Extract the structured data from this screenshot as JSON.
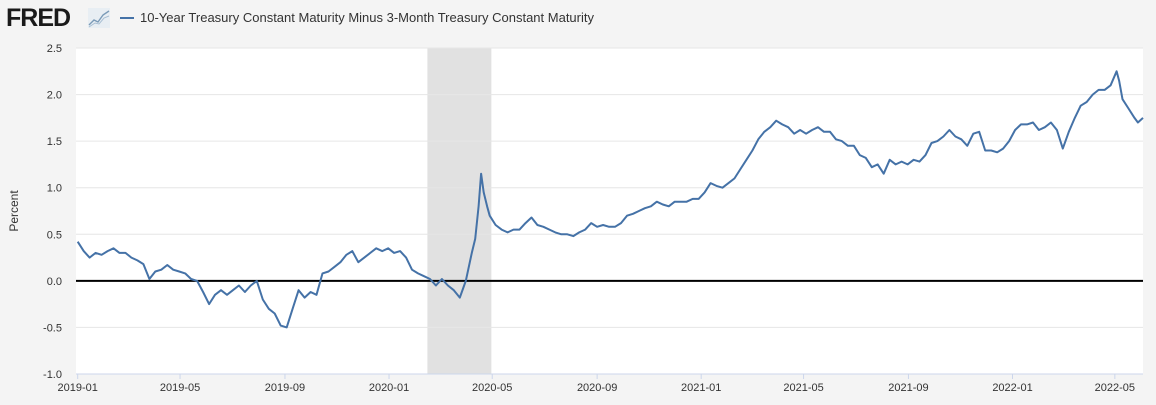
{
  "header": {
    "logo": "FRED",
    "series_label": "10-Year Treasury Constant Maturity Minus 3-Month Treasury Constant Maturity"
  },
  "chart_data": {
    "type": "line",
    "title": "10-Year Treasury Constant Maturity Minus 3-Month Treasury Constant Maturity",
    "ylabel": "Percent",
    "xlabel": "",
    "ylim": [
      -1.0,
      2.5
    ],
    "xlim": [
      "2018-12-30",
      "2022-06-03"
    ],
    "yticks": [
      -1.0,
      -0.5,
      0.0,
      0.5,
      1.0,
      1.5,
      2.0,
      2.5
    ],
    "ytick_labels": [
      "-1.0",
      "-0.5",
      "0.0",
      "0.5",
      "1.0",
      "1.5",
      "2.0",
      "2.5"
    ],
    "xticks": [
      "2019-01-01",
      "2019-05-01",
      "2019-09-01",
      "2020-01-01",
      "2020-05-01",
      "2020-09-01",
      "2021-01-01",
      "2021-05-01",
      "2021-09-01",
      "2022-01-01",
      "2022-05-01"
    ],
    "xtick_labels": [
      "2019-01",
      "2019-05",
      "2019-09",
      "2020-01",
      "2020-05",
      "2020-09",
      "2021-01",
      "2021-05",
      "2021-09",
      "2022-01",
      "2022-05"
    ],
    "grid": true,
    "recession": {
      "start": "2020-02-15",
      "end": "2020-04-30"
    },
    "colors": {
      "line": "#4572a7",
      "zero_line": "#000000",
      "recession": "#e1e1e1",
      "grid": "#e6e6e6"
    },
    "series": [
      {
        "name": "10-Year Treasury Constant Maturity Minus 3-Month Treasury Constant Maturity",
        "points": [
          [
            "2019-01-01",
            0.42
          ],
          [
            "2019-01-08",
            0.32
          ],
          [
            "2019-01-15",
            0.25
          ],
          [
            "2019-01-22",
            0.3
          ],
          [
            "2019-01-29",
            0.28
          ],
          [
            "2019-02-05",
            0.32
          ],
          [
            "2019-02-12",
            0.35
          ],
          [
            "2019-02-19",
            0.3
          ],
          [
            "2019-02-26",
            0.3
          ],
          [
            "2019-03-05",
            0.25
          ],
          [
            "2019-03-12",
            0.22
          ],
          [
            "2019-03-19",
            0.18
          ],
          [
            "2019-03-26",
            0.02
          ],
          [
            "2019-04-02",
            0.1
          ],
          [
            "2019-04-09",
            0.12
          ],
          [
            "2019-04-16",
            0.17
          ],
          [
            "2019-04-23",
            0.12
          ],
          [
            "2019-04-30",
            0.1
          ],
          [
            "2019-05-07",
            0.08
          ],
          [
            "2019-05-14",
            0.02
          ],
          [
            "2019-05-21",
            0.0
          ],
          [
            "2019-05-28",
            -0.12
          ],
          [
            "2019-06-04",
            -0.25
          ],
          [
            "2019-06-11",
            -0.15
          ],
          [
            "2019-06-18",
            -0.1
          ],
          [
            "2019-06-25",
            -0.15
          ],
          [
            "2019-07-02",
            -0.1
          ],
          [
            "2019-07-09",
            -0.05
          ],
          [
            "2019-07-16",
            -0.12
          ],
          [
            "2019-07-23",
            -0.05
          ],
          [
            "2019-07-30",
            0.0
          ],
          [
            "2019-08-06",
            -0.2
          ],
          [
            "2019-08-13",
            -0.3
          ],
          [
            "2019-08-20",
            -0.35
          ],
          [
            "2019-08-27",
            -0.48
          ],
          [
            "2019-09-03",
            -0.5
          ],
          [
            "2019-09-10",
            -0.3
          ],
          [
            "2019-09-17",
            -0.1
          ],
          [
            "2019-09-24",
            -0.18
          ],
          [
            "2019-10-01",
            -0.12
          ],
          [
            "2019-10-08",
            -0.15
          ],
          [
            "2019-10-15",
            0.08
          ],
          [
            "2019-10-22",
            0.1
          ],
          [
            "2019-10-29",
            0.15
          ],
          [
            "2019-11-05",
            0.2
          ],
          [
            "2019-11-12",
            0.28
          ],
          [
            "2019-11-19",
            0.32
          ],
          [
            "2019-11-26",
            0.2
          ],
          [
            "2019-12-03",
            0.25
          ],
          [
            "2019-12-10",
            0.3
          ],
          [
            "2019-12-17",
            0.35
          ],
          [
            "2019-12-24",
            0.32
          ],
          [
            "2019-12-31",
            0.35
          ],
          [
            "2020-01-07",
            0.3
          ],
          [
            "2020-01-14",
            0.32
          ],
          [
            "2020-01-21",
            0.25
          ],
          [
            "2020-01-28",
            0.12
          ],
          [
            "2020-02-04",
            0.08
          ],
          [
            "2020-02-11",
            0.05
          ],
          [
            "2020-02-18",
            0.02
          ],
          [
            "2020-02-25",
            -0.05
          ],
          [
            "2020-03-03",
            0.02
          ],
          [
            "2020-03-10",
            -0.05
          ],
          [
            "2020-03-17",
            -0.1
          ],
          [
            "2020-03-24",
            -0.18
          ],
          [
            "2020-03-31",
            0.0
          ],
          [
            "2020-04-07",
            0.3
          ],
          [
            "2020-04-11",
            0.45
          ],
          [
            "2020-04-15",
            0.8
          ],
          [
            "2020-04-18",
            1.15
          ],
          [
            "2020-04-21",
            0.95
          ],
          [
            "2020-04-25",
            0.8
          ],
          [
            "2020-04-28",
            0.7
          ],
          [
            "2020-05-05",
            0.6
          ],
          [
            "2020-05-12",
            0.55
          ],
          [
            "2020-05-19",
            0.52
          ],
          [
            "2020-05-26",
            0.55
          ],
          [
            "2020-06-02",
            0.55
          ],
          [
            "2020-06-09",
            0.62
          ],
          [
            "2020-06-16",
            0.68
          ],
          [
            "2020-06-23",
            0.6
          ],
          [
            "2020-06-30",
            0.58
          ],
          [
            "2020-07-07",
            0.55
          ],
          [
            "2020-07-14",
            0.52
          ],
          [
            "2020-07-21",
            0.5
          ],
          [
            "2020-07-28",
            0.5
          ],
          [
            "2020-08-04",
            0.48
          ],
          [
            "2020-08-11",
            0.52
          ],
          [
            "2020-08-18",
            0.55
          ],
          [
            "2020-08-25",
            0.62
          ],
          [
            "2020-09-01",
            0.58
          ],
          [
            "2020-09-08",
            0.6
          ],
          [
            "2020-09-15",
            0.58
          ],
          [
            "2020-09-22",
            0.58
          ],
          [
            "2020-09-29",
            0.62
          ],
          [
            "2020-10-06",
            0.7
          ],
          [
            "2020-10-13",
            0.72
          ],
          [
            "2020-10-20",
            0.75
          ],
          [
            "2020-10-27",
            0.78
          ],
          [
            "2020-11-03",
            0.8
          ],
          [
            "2020-11-10",
            0.85
          ],
          [
            "2020-11-17",
            0.82
          ],
          [
            "2020-11-24",
            0.8
          ],
          [
            "2020-12-01",
            0.85
          ],
          [
            "2020-12-08",
            0.85
          ],
          [
            "2020-12-15",
            0.85
          ],
          [
            "2020-12-22",
            0.88
          ],
          [
            "2020-12-29",
            0.88
          ],
          [
            "2021-01-05",
            0.95
          ],
          [
            "2021-01-12",
            1.05
          ],
          [
            "2021-01-19",
            1.02
          ],
          [
            "2021-01-26",
            1.0
          ],
          [
            "2021-02-02",
            1.05
          ],
          [
            "2021-02-09",
            1.1
          ],
          [
            "2021-02-16",
            1.2
          ],
          [
            "2021-02-23",
            1.3
          ],
          [
            "2021-03-02",
            1.4
          ],
          [
            "2021-03-09",
            1.52
          ],
          [
            "2021-03-16",
            1.6
          ],
          [
            "2021-03-23",
            1.65
          ],
          [
            "2021-03-30",
            1.72
          ],
          [
            "2021-04-06",
            1.68
          ],
          [
            "2021-04-13",
            1.65
          ],
          [
            "2021-04-20",
            1.58
          ],
          [
            "2021-04-27",
            1.62
          ],
          [
            "2021-05-04",
            1.58
          ],
          [
            "2021-05-11",
            1.62
          ],
          [
            "2021-05-18",
            1.65
          ],
          [
            "2021-05-25",
            1.6
          ],
          [
            "2021-06-01",
            1.6
          ],
          [
            "2021-06-08",
            1.52
          ],
          [
            "2021-06-15",
            1.5
          ],
          [
            "2021-06-22",
            1.45
          ],
          [
            "2021-06-29",
            1.45
          ],
          [
            "2021-07-06",
            1.35
          ],
          [
            "2021-07-13",
            1.32
          ],
          [
            "2021-07-20",
            1.22
          ],
          [
            "2021-07-27",
            1.25
          ],
          [
            "2021-08-03",
            1.15
          ],
          [
            "2021-08-10",
            1.3
          ],
          [
            "2021-08-17",
            1.25
          ],
          [
            "2021-08-24",
            1.28
          ],
          [
            "2021-08-31",
            1.25
          ],
          [
            "2021-09-07",
            1.3
          ],
          [
            "2021-09-14",
            1.28
          ],
          [
            "2021-09-21",
            1.35
          ],
          [
            "2021-09-28",
            1.48
          ],
          [
            "2021-10-05",
            1.5
          ],
          [
            "2021-10-12",
            1.55
          ],
          [
            "2021-10-19",
            1.62
          ],
          [
            "2021-10-26",
            1.55
          ],
          [
            "2021-11-02",
            1.52
          ],
          [
            "2021-11-09",
            1.45
          ],
          [
            "2021-11-16",
            1.58
          ],
          [
            "2021-11-23",
            1.6
          ],
          [
            "2021-11-30",
            1.4
          ],
          [
            "2021-12-07",
            1.4
          ],
          [
            "2021-12-14",
            1.38
          ],
          [
            "2021-12-21",
            1.42
          ],
          [
            "2021-12-28",
            1.5
          ],
          [
            "2022-01-04",
            1.62
          ],
          [
            "2022-01-11",
            1.68
          ],
          [
            "2022-01-18",
            1.68
          ],
          [
            "2022-01-25",
            1.7
          ],
          [
            "2022-02-01",
            1.62
          ],
          [
            "2022-02-08",
            1.65
          ],
          [
            "2022-02-15",
            1.7
          ],
          [
            "2022-02-22",
            1.62
          ],
          [
            "2022-03-01",
            1.42
          ],
          [
            "2022-03-08",
            1.6
          ],
          [
            "2022-03-15",
            1.75
          ],
          [
            "2022-03-22",
            1.88
          ],
          [
            "2022-03-29",
            1.92
          ],
          [
            "2022-04-05",
            2.0
          ],
          [
            "2022-04-12",
            2.05
          ],
          [
            "2022-04-19",
            2.05
          ],
          [
            "2022-04-26",
            2.1
          ],
          [
            "2022-05-03",
            2.25
          ],
          [
            "2022-05-06",
            2.15
          ],
          [
            "2022-05-10",
            1.95
          ],
          [
            "2022-05-17",
            1.85
          ],
          [
            "2022-05-24",
            1.75
          ],
          [
            "2022-05-28",
            1.7
          ],
          [
            "2022-06-03",
            1.75
          ]
        ]
      }
    ]
  }
}
